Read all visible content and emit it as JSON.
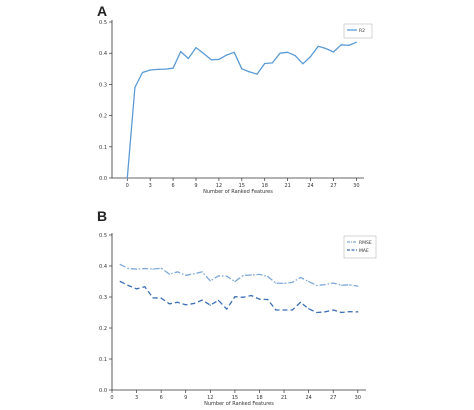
{
  "chart_data": [
    {
      "type": "line",
      "panel_label": "A",
      "xlabel": "Number of Ranked Features",
      "ylabel": "",
      "xlim": [
        -2,
        31
      ],
      "ylim": [
        0,
        0.5
      ],
      "xticks": [
        0,
        3,
        6,
        9,
        12,
        15,
        18,
        21,
        24,
        27,
        30
      ],
      "yticks": [
        0.0,
        0.1,
        0.2,
        0.3,
        0.4,
        0.5
      ],
      "grid": false,
      "legend": "top-right",
      "x": [
        0,
        1,
        2,
        3,
        4,
        5,
        6,
        7,
        8,
        9,
        10,
        11,
        12,
        13,
        14,
        15,
        16,
        17,
        18,
        19,
        20,
        21,
        22,
        23,
        24,
        25,
        26,
        27,
        28,
        29,
        30
      ],
      "series": [
        {
          "name": "R2",
          "color": "#5b9bd5",
          "style": "solid",
          "values": [
            0.0,
            0.29,
            0.338,
            0.346,
            0.348,
            0.349,
            0.352,
            0.405,
            0.383,
            0.418,
            0.399,
            0.379,
            0.38,
            0.394,
            0.403,
            0.35,
            0.34,
            0.333,
            0.367,
            0.369,
            0.4,
            0.403,
            0.392,
            0.366,
            0.389,
            0.422,
            0.415,
            0.404,
            0.427,
            0.425,
            0.435
          ]
        }
      ]
    },
    {
      "type": "line",
      "panel_label": "B",
      "xlabel": "Number of Ranked Features",
      "ylabel": "",
      "xlim": [
        0,
        31
      ],
      "ylim": [
        0,
        0.5
      ],
      "xticks": [
        0,
        3,
        6,
        9,
        12,
        15,
        18,
        21,
        24,
        27,
        30
      ],
      "yticks": [
        0.0,
        0.1,
        0.2,
        0.3,
        0.4,
        0.5
      ],
      "grid": false,
      "legend": "top-right",
      "x": [
        1,
        2,
        3,
        4,
        5,
        6,
        7,
        8,
        9,
        10,
        11,
        12,
        13,
        14,
        15,
        16,
        17,
        18,
        19,
        20,
        21,
        22,
        23,
        24,
        25,
        26,
        27,
        28,
        29,
        30
      ],
      "series": [
        {
          "name": "RMSE",
          "color": "#7fa9d8",
          "style": "dashdot",
          "values": [
            0.405,
            0.392,
            0.39,
            0.392,
            0.39,
            0.393,
            0.374,
            0.381,
            0.37,
            0.375,
            0.381,
            0.352,
            0.368,
            0.367,
            0.35,
            0.369,
            0.371,
            0.373,
            0.366,
            0.345,
            0.344,
            0.347,
            0.363,
            0.35,
            0.337,
            0.34,
            0.345,
            0.338,
            0.339,
            0.335
          ]
        },
        {
          "name": "MAE",
          "color": "#3c6fb4",
          "style": "dashed",
          "values": [
            0.35,
            0.337,
            0.326,
            0.333,
            0.297,
            0.296,
            0.278,
            0.283,
            0.275,
            0.279,
            0.29,
            0.274,
            0.289,
            0.261,
            0.301,
            0.299,
            0.305,
            0.293,
            0.292,
            0.258,
            0.258,
            0.258,
            0.283,
            0.262,
            0.25,
            0.252,
            0.258,
            0.25,
            0.253,
            0.252
          ]
        }
      ]
    }
  ]
}
